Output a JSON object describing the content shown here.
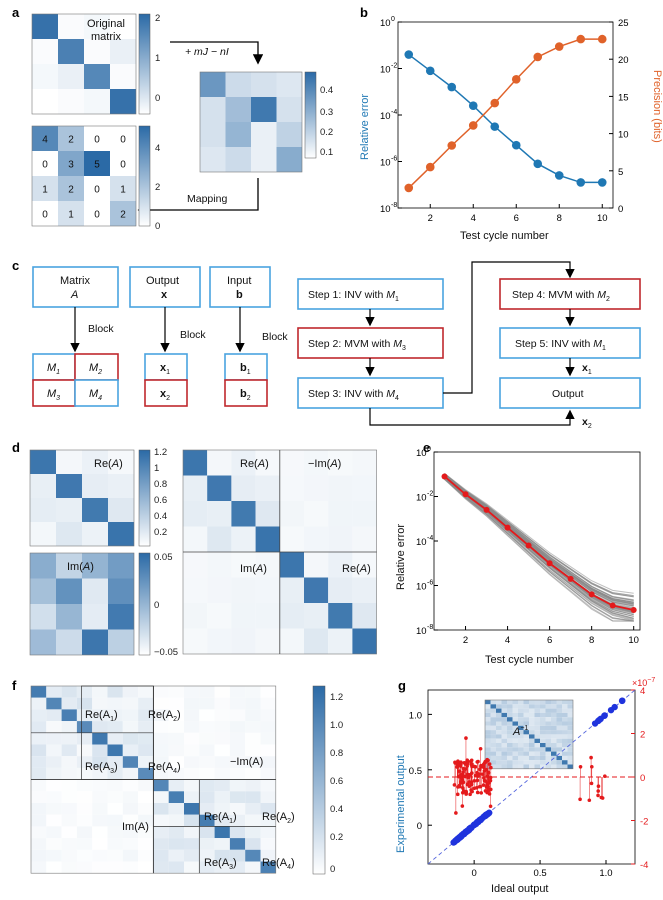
{
  "colors": {
    "blue": "#1f78b4",
    "orange": "#e0622a",
    "red": "#e41a1c",
    "gray": "#888888",
    "boxBlue": "#4aa3df",
    "boxRed": "#c0282d",
    "cmapDark": "#2b6aa6"
  },
  "panel_labels": {
    "a": "a",
    "b": "b",
    "c": "c",
    "d": "d",
    "e": "e",
    "f": "f",
    "g": "g"
  },
  "panel_a": {
    "original_label_1": "Original",
    "original_label_2": "matrix",
    "transform_label": "+ mJ − nI",
    "mapping_label": "Mapping",
    "original_matrix": [
      [
        1.9,
        0.05,
        0.1,
        0.0
      ],
      [
        0.05,
        1.7,
        0.05,
        0.2
      ],
      [
        0.1,
        0.2,
        1.6,
        0.05
      ],
      [
        0.0,
        0.05,
        0.1,
        1.9
      ]
    ],
    "cbar_original": [
      "2",
      "1",
      "0"
    ],
    "shifted_matrix": [
      [
        0.35,
        0.12,
        0.1,
        0.08
      ],
      [
        0.1,
        0.22,
        0.45,
        0.1
      ],
      [
        0.1,
        0.25,
        0.05,
        0.15
      ],
      [
        0.08,
        0.12,
        0.05,
        0.28
      ]
    ],
    "cbar_shifted": [
      "0.4",
      "0.3",
      "0.2",
      "0.1"
    ],
    "mapped_matrix": [
      [
        4,
        2,
        0,
        0
      ],
      [
        0,
        3,
        5,
        0
      ],
      [
        1,
        2,
        0,
        1
      ],
      [
        0,
        1,
        0,
        2
      ]
    ],
    "cbar_mapped": [
      "4",
      "2",
      "0"
    ]
  },
  "chart_data": [
    {
      "panel": "b",
      "type": "line",
      "xlabel": "Test cycle number",
      "ylabel": "Relative error",
      "y2label": "Precision (bits)",
      "x": [
        1,
        2,
        3,
        4,
        5,
        6,
        7,
        8,
        9,
        10
      ],
      "xticks": [
        "2",
        "4",
        "6",
        "8",
        "10"
      ],
      "yticks": [
        "10",
        "10",
        "10",
        "10",
        "10"
      ],
      "ytick_exp": [
        "0",
        "-2",
        "-4",
        "-6",
        "-8"
      ],
      "y2ticks": [
        "0",
        "5",
        "10",
        "15",
        "20",
        "25"
      ],
      "series": [
        {
          "name": "Relative error",
          "log10_values": [
            -1.4,
            -2.1,
            -2.8,
            -3.6,
            -4.5,
            -5.3,
            -6.1,
            -6.6,
            -6.9,
            -6.9
          ]
        },
        {
          "name": "Precision (bits)",
          "values": [
            2.7,
            5.5,
            8.4,
            11.1,
            14.1,
            17.3,
            20.3,
            21.7,
            22.7,
            22.7
          ]
        }
      ]
    },
    {
      "panel": "e",
      "type": "line",
      "xlabel": "Test cycle number",
      "ylabel": "Relative error",
      "x": [
        1,
        2,
        3,
        4,
        5,
        6,
        7,
        8,
        9,
        10
      ],
      "xticks": [
        "2",
        "4",
        "6",
        "8",
        "10"
      ],
      "yticks": [
        "10",
        "10",
        "10",
        "10",
        "10"
      ],
      "ytick_exp": [
        "0",
        "-2",
        "-4",
        "-6",
        "-8"
      ],
      "series": [
        {
          "name": "Mean relative error",
          "log10_values": [
            -1.1,
            -1.9,
            -2.6,
            -3.4,
            -4.2,
            -5.0,
            -5.7,
            -6.4,
            -6.9,
            -7.1
          ]
        }
      ]
    },
    {
      "panel": "g",
      "type": "scatter",
      "xlabel": "Ideal output",
      "ylabel": "Experimental output",
      "xticks": [
        "0",
        "0.5",
        "1.0"
      ],
      "yticks": [
        "0",
        "0.5",
        "1.0"
      ],
      "y2ticks": [
        "4",
        "2",
        "0",
        "-2",
        "-4"
      ],
      "y2_scale": "×10",
      "y2_scale_exp": "−7",
      "inset_label": "A",
      "inset_sup": "−1"
    }
  ],
  "panel_c": {
    "matrix_title": "Matrix",
    "matrix_sym": "A",
    "output_title": "Output",
    "output_sym": "x",
    "input_title": "Input",
    "input_sym": "b",
    "block_label": "Block",
    "blocks_M": [
      "M",
      "M",
      "M",
      "M"
    ],
    "blocks_M_sub": [
      "1",
      "2",
      "3",
      "4"
    ],
    "x_parts": [
      "x",
      "x"
    ],
    "x_subs": [
      "1",
      "2"
    ],
    "b_parts": [
      "b",
      "b"
    ],
    "b_subs": [
      "1",
      "2"
    ],
    "step1": "Step 1: INV with ",
    "step1_sym": "M",
    "step1_sub": "1",
    "step2": "Step 2: MVM with  ",
    "step2_sym": "M",
    "step2_sub": "3",
    "step3": "Step 3: INV with  ",
    "step3_sym": "M",
    "step3_sub": "4",
    "step4": "Step 4: MVM with  ",
    "step4_sym": "M",
    "step4_sub": "2",
    "step5": "Step 5: INV with ",
    "step5_sym": "M",
    "step5_sub": "1",
    "output_box": "Output",
    "x1": "x",
    "x1_sub": "1",
    "x2": "x",
    "x2_sub": "2"
  },
  "panel_d": {
    "re_label": "Re(",
    "re_sym": "A",
    "close": ")",
    "im_label": "Im(",
    "neg_im_label": "−Im(",
    "cbar_re": [
      "1.2",
      "1",
      "0.8",
      "0.6",
      "0.4",
      "0.2"
    ],
    "cbar_im": [
      "0.05",
      "0",
      "−0.05"
    ]
  },
  "panel_f": {
    "re1": "Re(A",
    "re2": "Re(A",
    "re3": "Re(A",
    "re4": "Re(A",
    "subs": [
      "1",
      "2",
      "3",
      "4"
    ],
    "neg_im": "−Im(A)",
    "im": "Im(A)",
    "cbar": [
      "1.2",
      "1.0",
      "0.8",
      "0.6",
      "0.4",
      "0.2",
      "0"
    ]
  }
}
